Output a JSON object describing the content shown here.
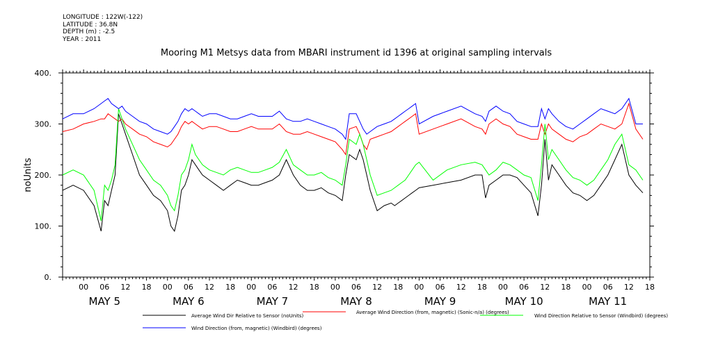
{
  "metadata": {
    "longitude": "LONGITUDE : 122W(-122)",
    "latitude": "LATITUDE : 36.8N",
    "depth": "DEPTH (m) : -2.5",
    "year": "YEAR : 2011"
  },
  "chart_data": {
    "type": "line",
    "title": "Mooring M1 Metsys data from MBARI instrument id 1396 at original sampling intervals",
    "ylabel": "noUnits",
    "xlabel": "",
    "ylim": [
      0,
      400
    ],
    "yticks": [
      "0.",
      "100.",
      "200.",
      "300.",
      "400."
    ],
    "xlim_hours_from_may5_00": [
      -6,
      162
    ],
    "hour_ticks": [
      "00",
      "06",
      "12",
      "18",
      "00",
      "06",
      "12",
      "18",
      "00",
      "06",
      "12",
      "18",
      "00",
      "06",
      "12",
      "18",
      "00",
      "06",
      "12",
      "18",
      "00",
      "06",
      "12",
      "18",
      "00",
      "06",
      "12",
      "18"
    ],
    "day_labels": [
      "MAY   5",
      "MAY   6",
      "MAY   7",
      "MAY   8",
      "MAY   9",
      "MAY  10",
      "MAY  11"
    ],
    "grid": false,
    "legend_position": "bottom",
    "series": [
      {
        "name": "Average Wind Dir Relative to Sensor (noUnits)",
        "color": "#000000",
        "x": [
          -6,
          -3,
          0,
          3,
          5,
          6,
          7,
          8,
          9,
          10,
          11,
          12,
          14,
          16,
          18,
          20,
          22,
          24,
          25,
          26,
          27,
          28,
          29,
          30,
          31,
          32,
          33,
          34,
          36,
          38,
          40,
          42,
          44,
          46,
          48,
          50,
          52,
          54,
          56,
          58,
          60,
          62,
          64,
          66,
          68,
          70,
          72,
          74,
          75,
          76,
          78,
          79,
          80,
          81,
          82,
          84,
          86,
          88,
          89,
          90,
          91,
          92,
          93,
          94,
          95,
          96,
          100,
          104,
          108,
          112,
          114,
          115,
          116,
          118,
          120,
          122,
          124,
          126,
          128,
          130,
          131,
          132,
          133,
          134,
          136,
          138,
          140,
          142,
          144,
          146,
          148,
          150,
          152,
          154,
          156,
          158,
          160
        ],
        "y": [
          170,
          180,
          170,
          140,
          90,
          150,
          140,
          170,
          200,
          320,
          300,
          280,
          240,
          200,
          180,
          160,
          150,
          130,
          100,
          90,
          120,
          170,
          180,
          200,
          230,
          220,
          210,
          200,
          190,
          180,
          170,
          180,
          190,
          185,
          180,
          180,
          185,
          190,
          200,
          230,
          200,
          180,
          170,
          170,
          175,
          165,
          160,
          150,
          200,
          240,
          230,
          250,
          230,
          200,
          170,
          130,
          140,
          145,
          140,
          145,
          150,
          155,
          160,
          165,
          170,
          175,
          180,
          185,
          190,
          200,
          200,
          155,
          180,
          190,
          200,
          200,
          195,
          180,
          165,
          120,
          180,
          270,
          190,
          220,
          200,
          180,
          165,
          160,
          150,
          160,
          180,
          200,
          230,
          260,
          200,
          180,
          165
        ]
      },
      {
        "name": "Average Wind Direction (from, magnetic) (Sonic-n/a) (degrees)",
        "color": "#ff0000",
        "x": [
          -6,
          -3,
          0,
          3,
          5,
          6,
          7,
          8,
          9,
          10,
          11,
          12,
          14,
          16,
          18,
          20,
          22,
          24,
          25,
          26,
          27,
          28,
          29,
          30,
          31,
          32,
          33,
          34,
          36,
          38,
          40,
          42,
          44,
          46,
          48,
          50,
          52,
          54,
          56,
          58,
          60,
          62,
          64,
          66,
          68,
          70,
          72,
          74,
          75,
          76,
          78,
          79,
          80,
          81,
          82,
          84,
          86,
          88,
          89,
          90,
          91,
          92,
          93,
          94,
          95,
          96,
          100,
          104,
          108,
          112,
          114,
          115,
          116,
          118,
          120,
          122,
          124,
          126,
          128,
          130,
          131,
          132,
          133,
          134,
          136,
          138,
          140,
          142,
          144,
          146,
          148,
          150,
          152,
          154,
          156,
          158,
          160
        ],
        "y": [
          285,
          290,
          300,
          305,
          310,
          310,
          320,
          315,
          310,
          305,
          310,
          300,
          290,
          280,
          275,
          265,
          260,
          255,
          260,
          270,
          280,
          295,
          305,
          300,
          305,
          300,
          295,
          290,
          295,
          295,
          290,
          285,
          285,
          290,
          295,
          290,
          290,
          290,
          300,
          285,
          280,
          280,
          285,
          280,
          275,
          270,
          265,
          250,
          240,
          290,
          295,
          280,
          260,
          250,
          270,
          275,
          280,
          285,
          290,
          295,
          300,
          305,
          310,
          315,
          320,
          280,
          290,
          300,
          310,
          295,
          290,
          280,
          300,
          310,
          300,
          295,
          280,
          275,
          270,
          270,
          300,
          280,
          300,
          290,
          280,
          270,
          265,
          275,
          280,
          290,
          300,
          295,
          290,
          300,
          340,
          290,
          270
        ]
      },
      {
        "name": "Wind Direction Relative to Sensor (Windbird) (degrees)",
        "color": "#00ff00",
        "x": [
          -6,
          -3,
          0,
          3,
          5,
          6,
          7,
          8,
          9,
          10,
          11,
          12,
          14,
          16,
          18,
          20,
          22,
          24,
          25,
          26,
          27,
          28,
          29,
          30,
          31,
          32,
          33,
          34,
          36,
          38,
          40,
          42,
          44,
          46,
          48,
          50,
          52,
          54,
          56,
          58,
          60,
          62,
          64,
          66,
          68,
          70,
          72,
          74,
          75,
          76,
          78,
          79,
          80,
          81,
          82,
          84,
          86,
          88,
          89,
          90,
          91,
          92,
          93,
          94,
          95,
          96,
          100,
          104,
          108,
          112,
          114,
          115,
          116,
          118,
          120,
          122,
          124,
          126,
          128,
          130,
          131,
          132,
          133,
          134,
          136,
          138,
          140,
          142,
          144,
          146,
          148,
          150,
          152,
          154,
          156,
          158,
          160
        ],
        "y": [
          200,
          210,
          200,
          170,
          110,
          180,
          170,
          190,
          220,
          330,
          310,
          290,
          260,
          230,
          210,
          190,
          180,
          160,
          140,
          130,
          160,
          200,
          210,
          230,
          260,
          240,
          230,
          220,
          210,
          205,
          200,
          210,
          215,
          210,
          205,
          205,
          210,
          215,
          225,
          250,
          220,
          210,
          200,
          200,
          205,
          195,
          190,
          180,
          220,
          270,
          260,
          280,
          260,
          230,
          200,
          160,
          165,
          170,
          175,
          180,
          185,
          190,
          200,
          210,
          220,
          225,
          190,
          210,
          220,
          225,
          220,
          210,
          200,
          210,
          225,
          220,
          210,
          200,
          195,
          150,
          220,
          300,
          230,
          250,
          230,
          210,
          195,
          190,
          180,
          190,
          210,
          230,
          260,
          280,
          220,
          210,
          190
        ]
      },
      {
        "name": "Wind Direction (from, magnetic) (Windbird) (degrees)",
        "color": "#0000ff",
        "x": [
          -6,
          -3,
          0,
          3,
          5,
          6,
          7,
          8,
          9,
          10,
          11,
          12,
          14,
          16,
          18,
          20,
          22,
          24,
          25,
          26,
          27,
          28,
          29,
          30,
          31,
          32,
          33,
          34,
          36,
          38,
          40,
          42,
          44,
          46,
          48,
          50,
          52,
          54,
          56,
          58,
          60,
          62,
          64,
          66,
          68,
          70,
          72,
          74,
          75,
          76,
          78,
          79,
          80,
          81,
          82,
          84,
          86,
          88,
          89,
          90,
          91,
          92,
          93,
          94,
          95,
          96,
          100,
          104,
          108,
          112,
          114,
          115,
          116,
          118,
          120,
          122,
          124,
          126,
          128,
          130,
          131,
          132,
          133,
          134,
          136,
          138,
          140,
          142,
          144,
          146,
          148,
          150,
          152,
          154,
          156,
          158,
          160
        ],
        "y": [
          310,
          320,
          320,
          330,
          340,
          345,
          350,
          340,
          335,
          330,
          335,
          325,
          315,
          305,
          300,
          290,
          285,
          280,
          285,
          295,
          305,
          320,
          330,
          325,
          330,
          325,
          320,
          315,
          320,
          320,
          315,
          310,
          310,
          315,
          320,
          315,
          315,
          315,
          325,
          310,
          305,
          305,
          310,
          305,
          300,
          295,
          290,
          280,
          270,
          320,
          320,
          305,
          290,
          280,
          285,
          295,
          300,
          305,
          310,
          315,
          320,
          325,
          330,
          335,
          340,
          300,
          315,
          325,
          335,
          320,
          315,
          305,
          325,
          335,
          325,
          320,
          305,
          300,
          295,
          295,
          330,
          310,
          330,
          320,
          305,
          295,
          290,
          300,
          310,
          320,
          330,
          325,
          320,
          330,
          350,
          300,
          300
        ]
      }
    ]
  }
}
